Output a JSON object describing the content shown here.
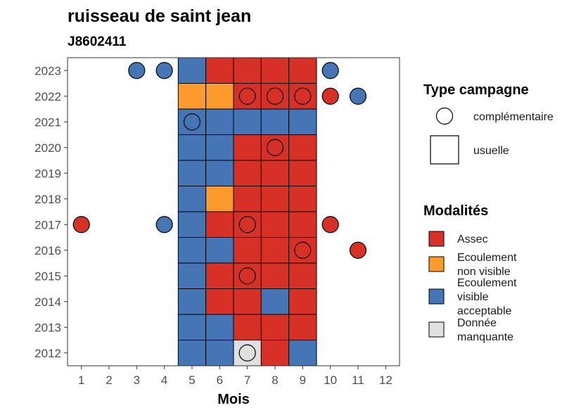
{
  "chart_data": {
    "type": "heatmap",
    "title": "ruisseau de saint jean",
    "subtitle": "J8602411",
    "xlabel": "Mois",
    "ylabel": "",
    "x_ticks": [
      "1",
      "2",
      "3",
      "4",
      "5",
      "6",
      "7",
      "8",
      "9",
      "10",
      "11",
      "12"
    ],
    "y_ticks": [
      "2012",
      "2013",
      "2014",
      "2015",
      "2016",
      "2017",
      "2018",
      "2019",
      "2020",
      "2021",
      "2022",
      "2023"
    ],
    "grid": false,
    "legend_placement": "right",
    "colors": {
      "Assec": "#d73027",
      "Ecoulement non visible": "#fd9a2e",
      "Ecoulement visible acceptable": "#4575b4",
      "Donnée manquante": "#e0e0e0"
    },
    "legends": {
      "type_campagne": {
        "title": "Type campagne",
        "items": [
          {
            "label": "complémentaire",
            "shape": "circle"
          },
          {
            "label": "usuelle",
            "shape": "square"
          }
        ]
      },
      "modalites": {
        "title": "Modalités",
        "items": [
          {
            "lines": [
              "Assec"
            ],
            "key": "Assec"
          },
          {
            "lines": [
              "Ecoulement",
              "non visible"
            ],
            "key": "Ecoulement non visible"
          },
          {
            "lines": [
              "Ecoulement",
              "visible",
              "acceptable"
            ],
            "key": "Ecoulement visible acceptable"
          },
          {
            "lines": [
              "Donnée",
              "manquante"
            ],
            "key": "Donnée manquante"
          }
        ]
      }
    },
    "observations": [
      {
        "year": 2023,
        "month": 3,
        "type": "complémentaire",
        "modalite": "Ecoulement visible acceptable"
      },
      {
        "year": 2023,
        "month": 4,
        "type": "complémentaire",
        "modalite": "Ecoulement visible acceptable"
      },
      {
        "year": 2023,
        "month": 5,
        "type": "usuelle",
        "modalite": "Ecoulement visible acceptable"
      },
      {
        "year": 2023,
        "month": 6,
        "type": "usuelle",
        "modalite": "Assec"
      },
      {
        "year": 2023,
        "month": 7,
        "type": "usuelle",
        "modalite": "Assec"
      },
      {
        "year": 2023,
        "month": 8,
        "type": "usuelle",
        "modalite": "Assec"
      },
      {
        "year": 2023,
        "month": 9,
        "type": "usuelle",
        "modalite": "Assec"
      },
      {
        "year": 2023,
        "month": 10,
        "type": "complémentaire",
        "modalite": "Ecoulement visible acceptable"
      },
      {
        "year": 2022,
        "month": 5,
        "type": "usuelle",
        "modalite": "Ecoulement non visible"
      },
      {
        "year": 2022,
        "month": 6,
        "type": "usuelle",
        "modalite": "Ecoulement non visible"
      },
      {
        "year": 2022,
        "month": 7,
        "type": "usuelle",
        "modalite": "Assec"
      },
      {
        "year": 2022,
        "month": 7,
        "type": "complémentaire",
        "modalite": "Assec"
      },
      {
        "year": 2022,
        "month": 8,
        "type": "usuelle",
        "modalite": "Assec"
      },
      {
        "year": 2022,
        "month": 8,
        "type": "complémentaire",
        "modalite": "Assec"
      },
      {
        "year": 2022,
        "month": 9,
        "type": "usuelle",
        "modalite": "Assec"
      },
      {
        "year": 2022,
        "month": 9,
        "type": "complémentaire",
        "modalite": "Assec"
      },
      {
        "year": 2022,
        "month": 10,
        "type": "complémentaire",
        "modalite": "Assec"
      },
      {
        "year": 2022,
        "month": 11,
        "type": "complémentaire",
        "modalite": "Ecoulement visible acceptable"
      },
      {
        "year": 2021,
        "month": 5,
        "type": "usuelle",
        "modalite": "Ecoulement visible acceptable"
      },
      {
        "year": 2021,
        "month": 5,
        "type": "complémentaire",
        "modalite": "Ecoulement visible acceptable"
      },
      {
        "year": 2021,
        "month": 6,
        "type": "usuelle",
        "modalite": "Ecoulement visible acceptable"
      },
      {
        "year": 2021,
        "month": 7,
        "type": "usuelle",
        "modalite": "Ecoulement visible acceptable"
      },
      {
        "year": 2021,
        "month": 8,
        "type": "usuelle",
        "modalite": "Ecoulement visible acceptable"
      },
      {
        "year": 2021,
        "month": 9,
        "type": "usuelle",
        "modalite": "Ecoulement visible acceptable"
      },
      {
        "year": 2020,
        "month": 5,
        "type": "usuelle",
        "modalite": "Ecoulement visible acceptable"
      },
      {
        "year": 2020,
        "month": 6,
        "type": "usuelle",
        "modalite": "Ecoulement visible acceptable"
      },
      {
        "year": 2020,
        "month": 7,
        "type": "usuelle",
        "modalite": "Assec"
      },
      {
        "year": 2020,
        "month": 8,
        "type": "usuelle",
        "modalite": "Assec"
      },
      {
        "year": 2020,
        "month": 8,
        "type": "complémentaire",
        "modalite": "Assec"
      },
      {
        "year": 2020,
        "month": 9,
        "type": "usuelle",
        "modalite": "Assec"
      },
      {
        "year": 2019,
        "month": 5,
        "type": "usuelle",
        "modalite": "Ecoulement visible acceptable"
      },
      {
        "year": 2019,
        "month": 6,
        "type": "usuelle",
        "modalite": "Ecoulement visible acceptable"
      },
      {
        "year": 2019,
        "month": 7,
        "type": "usuelle",
        "modalite": "Assec"
      },
      {
        "year": 2019,
        "month": 8,
        "type": "usuelle",
        "modalite": "Assec"
      },
      {
        "year": 2019,
        "month": 9,
        "type": "usuelle",
        "modalite": "Assec"
      },
      {
        "year": 2018,
        "month": 5,
        "type": "usuelle",
        "modalite": "Ecoulement visible acceptable"
      },
      {
        "year": 2018,
        "month": 6,
        "type": "usuelle",
        "modalite": "Ecoulement non visible"
      },
      {
        "year": 2018,
        "month": 7,
        "type": "usuelle",
        "modalite": "Assec"
      },
      {
        "year": 2018,
        "month": 8,
        "type": "usuelle",
        "modalite": "Assec"
      },
      {
        "year": 2018,
        "month": 9,
        "type": "usuelle",
        "modalite": "Assec"
      },
      {
        "year": 2017,
        "month": 1,
        "type": "complémentaire",
        "modalite": "Assec"
      },
      {
        "year": 2017,
        "month": 4,
        "type": "complémentaire",
        "modalite": "Ecoulement visible acceptable"
      },
      {
        "year": 2017,
        "month": 5,
        "type": "usuelle",
        "modalite": "Ecoulement visible acceptable"
      },
      {
        "year": 2017,
        "month": 6,
        "type": "usuelle",
        "modalite": "Assec"
      },
      {
        "year": 2017,
        "month": 7,
        "type": "usuelle",
        "modalite": "Assec"
      },
      {
        "year": 2017,
        "month": 7,
        "type": "complémentaire",
        "modalite": "Assec"
      },
      {
        "year": 2017,
        "month": 8,
        "type": "usuelle",
        "modalite": "Assec"
      },
      {
        "year": 2017,
        "month": 9,
        "type": "usuelle",
        "modalite": "Assec"
      },
      {
        "year": 2017,
        "month": 10,
        "type": "complémentaire",
        "modalite": "Assec"
      },
      {
        "year": 2016,
        "month": 5,
        "type": "usuelle",
        "modalite": "Ecoulement visible acceptable"
      },
      {
        "year": 2016,
        "month": 6,
        "type": "usuelle",
        "modalite": "Ecoulement visible acceptable"
      },
      {
        "year": 2016,
        "month": 7,
        "type": "usuelle",
        "modalite": "Assec"
      },
      {
        "year": 2016,
        "month": 8,
        "type": "usuelle",
        "modalite": "Assec"
      },
      {
        "year": 2016,
        "month": 9,
        "type": "usuelle",
        "modalite": "Assec"
      },
      {
        "year": 2016,
        "month": 9,
        "type": "complémentaire",
        "modalite": "Assec"
      },
      {
        "year": 2016,
        "month": 11,
        "type": "complémentaire",
        "modalite": "Assec"
      },
      {
        "year": 2015,
        "month": 5,
        "type": "usuelle",
        "modalite": "Ecoulement visible acceptable"
      },
      {
        "year": 2015,
        "month": 6,
        "type": "usuelle",
        "modalite": "Assec"
      },
      {
        "year": 2015,
        "month": 7,
        "type": "usuelle",
        "modalite": "Assec"
      },
      {
        "year": 2015,
        "month": 7,
        "type": "complémentaire",
        "modalite": "Assec"
      },
      {
        "year": 2015,
        "month": 8,
        "type": "usuelle",
        "modalite": "Assec"
      },
      {
        "year": 2015,
        "month": 9,
        "type": "usuelle",
        "modalite": "Assec"
      },
      {
        "year": 2014,
        "month": 5,
        "type": "usuelle",
        "modalite": "Ecoulement visible acceptable"
      },
      {
        "year": 2014,
        "month": 6,
        "type": "usuelle",
        "modalite": "Assec"
      },
      {
        "year": 2014,
        "month": 7,
        "type": "usuelle",
        "modalite": "Assec"
      },
      {
        "year": 2014,
        "month": 8,
        "type": "usuelle",
        "modalite": "Ecoulement visible acceptable"
      },
      {
        "year": 2014,
        "month": 9,
        "type": "usuelle",
        "modalite": "Assec"
      },
      {
        "year": 2013,
        "month": 5,
        "type": "usuelle",
        "modalite": "Ecoulement visible acceptable"
      },
      {
        "year": 2013,
        "month": 6,
        "type": "usuelle",
        "modalite": "Ecoulement visible acceptable"
      },
      {
        "year": 2013,
        "month": 7,
        "type": "usuelle",
        "modalite": "Assec"
      },
      {
        "year": 2013,
        "month": 8,
        "type": "usuelle",
        "modalite": "Assec"
      },
      {
        "year": 2013,
        "month": 9,
        "type": "usuelle",
        "modalite": "Assec"
      },
      {
        "year": 2012,
        "month": 5,
        "type": "usuelle",
        "modalite": "Ecoulement visible acceptable"
      },
      {
        "year": 2012,
        "month": 6,
        "type": "usuelle",
        "modalite": "Ecoulement visible acceptable"
      },
      {
        "year": 2012,
        "month": 7,
        "type": "usuelle",
        "modalite": "Donnée manquante"
      },
      {
        "year": 2012,
        "month": 7,
        "type": "complémentaire",
        "modalite": "Donnée manquante"
      },
      {
        "year": 2012,
        "month": 8,
        "type": "usuelle",
        "modalite": "Assec"
      },
      {
        "year": 2012,
        "month": 9,
        "type": "usuelle",
        "modalite": "Ecoulement visible acceptable"
      }
    ]
  }
}
